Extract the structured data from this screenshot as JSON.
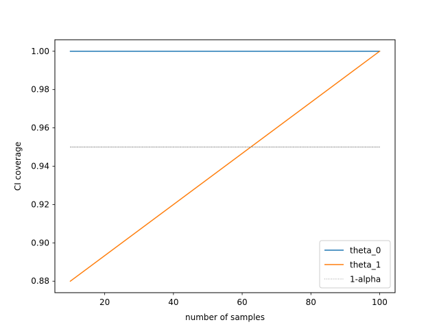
{
  "chart_data": {
    "type": "line",
    "xlabel": "number of samples",
    "ylabel": "CI coverage",
    "xlim": [
      5.5,
      104.5
    ],
    "ylim": [
      0.874,
      1.006
    ],
    "xticks": [
      20,
      40,
      60,
      80,
      100
    ],
    "xtick_labels": [
      "20",
      "40",
      "60",
      "80",
      "100"
    ],
    "yticks": [
      0.88,
      0.9,
      0.92,
      0.94,
      0.96,
      0.98,
      1.0
    ],
    "ytick_labels": [
      "0.88",
      "0.90",
      "0.92",
      "0.94",
      "0.96",
      "0.98",
      "1.00"
    ],
    "grid": false,
    "legend_position": "lower-right",
    "series": [
      {
        "name": "theta_0",
        "color": "#1f77b4",
        "style": "solid",
        "x": [
          10,
          100
        ],
        "y": [
          1.0,
          1.0
        ]
      },
      {
        "name": "theta_1",
        "color": "#ff7f0e",
        "style": "solid",
        "x": [
          10,
          100
        ],
        "y": [
          0.88,
          1.0
        ]
      },
      {
        "name": "1-alpha",
        "color": "#808080",
        "style": "dotted",
        "x": [
          10,
          100
        ],
        "y": [
          0.95,
          0.95
        ]
      }
    ]
  }
}
